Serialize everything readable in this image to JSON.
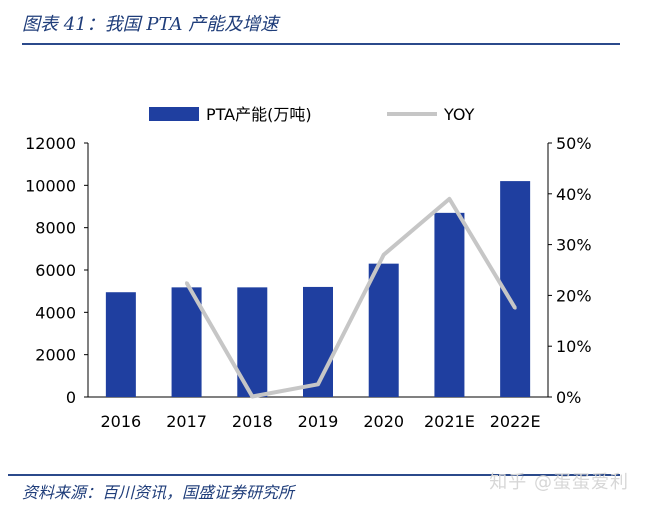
{
  "header": {
    "title": "图表 41：我国 PTA 产能及增速"
  },
  "footer": {
    "source": "资料来源：百川资讯，国盛证券研究所",
    "watermark": "知乎 @蛋蛋爱利"
  },
  "colors": {
    "bar": "#1f3fa0",
    "line": "#c6c6c6",
    "rule": "#2b4a8b",
    "title": "#1f3d7a"
  },
  "chart_data": {
    "type": "bar",
    "categories": [
      "2016",
      "2017",
      "2018",
      "2019",
      "2020",
      "2021E",
      "2022E"
    ],
    "series": [
      {
        "name": "PTA产能(万吨)",
        "type": "bar",
        "axis": "left",
        "values": [
          4950,
          5180,
          5180,
          5200,
          6300,
          8700,
          10200
        ]
      },
      {
        "name": "YOY",
        "type": "line",
        "axis": "right",
        "values": [
          null,
          22.5,
          0.1,
          2.5,
          28.0,
          39.0,
          17.5
        ]
      }
    ],
    "y_left": {
      "ylim": [
        0,
        12000
      ],
      "ticks": [
        "0",
        "2000",
        "4000",
        "6000",
        "8000",
        "10000",
        "12000"
      ]
    },
    "y_right": {
      "ylim": [
        0,
        50
      ],
      "ticks": [
        "0%",
        "10%",
        "20%",
        "30%",
        "40%",
        "50%"
      ]
    },
    "legend": {
      "position": "top",
      "items": [
        "PTA产能(万吨)",
        "YOY"
      ]
    },
    "grid": false
  }
}
